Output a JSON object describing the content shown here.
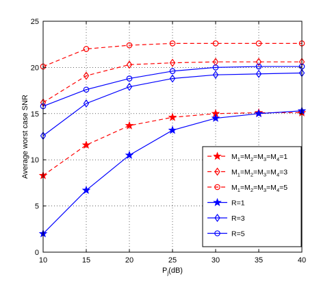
{
  "chart_data": {
    "type": "line",
    "title": "",
    "xlabel_main": "P",
    "xlabel_sub": "j",
    "xlabel_rest": "(dB)",
    "ylabel": "Average worst case SNR",
    "xlim": [
      10,
      40
    ],
    "ylim": [
      0,
      25
    ],
    "xticks": [
      10,
      15,
      20,
      25,
      30,
      35,
      40
    ],
    "yticks": [
      0,
      5,
      10,
      15,
      20,
      25
    ],
    "grid": true,
    "legend_position": "lower-right",
    "x": [
      10,
      15,
      20,
      25,
      30,
      35,
      40
    ],
    "series": [
      {
        "name": "M1=M2=M3=M4=1",
        "legend_parts": [
          "M",
          "1",
          "=M",
          "2",
          "=M",
          "3",
          "=M",
          "4",
          "=1"
        ],
        "color": "#ff0000",
        "dash": true,
        "marker": "star",
        "values": [
          8.3,
          11.6,
          13.7,
          14.6,
          15.0,
          15.1,
          15.1
        ]
      },
      {
        "name": "M1=M2=M3=M4=3",
        "legend_parts": [
          "M",
          "1",
          "=M",
          "2",
          "=M",
          "3",
          "=M",
          "4",
          "=3"
        ],
        "color": "#ff0000",
        "dash": true,
        "marker": "diamond",
        "values": [
          16.2,
          19.1,
          20.3,
          20.5,
          20.6,
          20.6,
          20.6
        ]
      },
      {
        "name": "M1=M2=M3=M4=5",
        "legend_parts": [
          "M",
          "1",
          "=M",
          "2",
          "=M",
          "3",
          "=M",
          "4",
          "=5"
        ],
        "color": "#ff0000",
        "dash": true,
        "marker": "circle",
        "values": [
          20.1,
          22.0,
          22.4,
          22.6,
          22.6,
          22.6,
          22.6
        ]
      },
      {
        "name": "R=1",
        "legend_parts": [
          "R=1"
        ],
        "color": "#0000ff",
        "dash": false,
        "marker": "star",
        "values": [
          2.0,
          6.7,
          10.5,
          13.2,
          14.5,
          15.0,
          15.3
        ]
      },
      {
        "name": "R=3",
        "legend_parts": [
          "R=3"
        ],
        "color": "#0000ff",
        "dash": false,
        "marker": "diamond",
        "values": [
          12.6,
          16.1,
          17.9,
          18.8,
          19.2,
          19.3,
          19.4
        ]
      },
      {
        "name": "R=5",
        "legend_parts": [
          "R=5"
        ],
        "color": "#0000ff",
        "dash": false,
        "marker": "circle",
        "values": [
          15.8,
          17.6,
          18.8,
          19.6,
          20.0,
          20.1,
          20.1
        ]
      }
    ]
  }
}
